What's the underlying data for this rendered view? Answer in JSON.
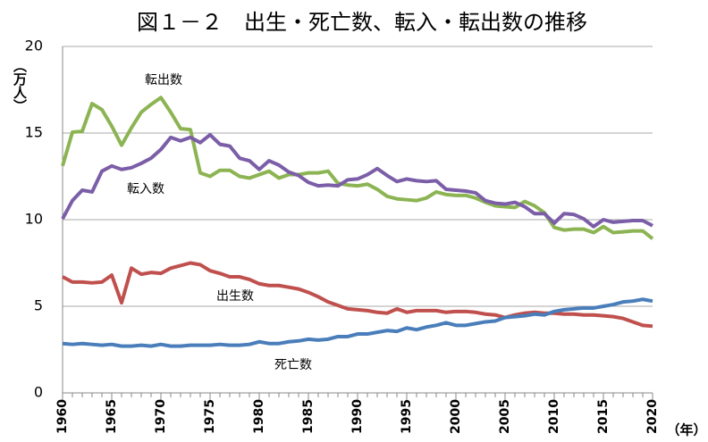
{
  "chart_data": {
    "type": "line",
    "title": "図１－２　出生・死亡数、転入・転出数の推移",
    "y_label": "（万人）",
    "x_label": "（年）",
    "x": [
      1960,
      1961,
      1962,
      1963,
      1964,
      1965,
      1966,
      1967,
      1968,
      1969,
      1970,
      1971,
      1972,
      1973,
      1974,
      1975,
      1976,
      1977,
      1978,
      1979,
      1980,
      1981,
      1982,
      1983,
      1984,
      1985,
      1986,
      1987,
      1988,
      1989,
      1990,
      1991,
      1992,
      1993,
      1994,
      1995,
      1996,
      1997,
      1998,
      1999,
      2000,
      2001,
      2002,
      2003,
      2004,
      2005,
      2006,
      2007,
      2008,
      2009,
      2010,
      2011,
      2012,
      2013,
      2014,
      2015,
      2016,
      2017,
      2018,
      2019,
      2020
    ],
    "xlim": [
      1960,
      2020
    ],
    "xticks": [
      1960,
      1965,
      1970,
      1975,
      1980,
      1985,
      1990,
      1995,
      2000,
      2005,
      2010,
      2015,
      2020
    ],
    "ylim": [
      0,
      20
    ],
    "yticks": [
      0,
      5,
      10,
      15,
      20
    ],
    "grid": true,
    "series": [
      {
        "name": "転出数",
        "color": "#8cb453",
        "values": [
          13.1,
          15.05,
          15.1,
          16.7,
          16.35,
          15.4,
          14.3,
          15.3,
          16.2,
          16.65,
          17.05,
          16.2,
          15.25,
          15.2,
          12.7,
          12.5,
          12.85,
          12.85,
          12.5,
          12.4,
          12.6,
          12.8,
          12.4,
          12.6,
          12.6,
          12.7,
          12.7,
          12.8,
          12.1,
          12.0,
          11.95,
          12.05,
          11.75,
          11.35,
          11.2,
          11.15,
          11.1,
          11.25,
          11.6,
          11.45,
          11.4,
          11.4,
          11.25,
          11.0,
          10.8,
          10.75,
          10.7,
          11.05,
          10.8,
          10.4,
          9.55,
          9.4,
          9.45,
          9.45,
          9.25,
          9.6,
          9.25,
          9.3,
          9.35,
          9.35,
          8.9
        ]
      },
      {
        "name": "転入数",
        "color": "#7b5ea7",
        "values": [
          10.05,
          11.1,
          11.7,
          11.6,
          12.8,
          13.1,
          12.9,
          13.0,
          13.25,
          13.55,
          14.05,
          14.75,
          14.55,
          14.75,
          14.45,
          14.9,
          14.35,
          14.25,
          13.55,
          13.4,
          12.9,
          13.4,
          13.15,
          12.75,
          12.55,
          12.15,
          11.95,
          12.0,
          11.95,
          12.3,
          12.35,
          12.6,
          12.95,
          12.55,
          12.2,
          12.35,
          12.25,
          12.2,
          12.25,
          11.75,
          11.7,
          11.65,
          11.55,
          11.1,
          10.95,
          10.9,
          11.0,
          10.75,
          10.35,
          10.35,
          9.8,
          10.35,
          10.3,
          10.05,
          9.6,
          10.0,
          9.85,
          9.9,
          9.95,
          9.95,
          9.65
        ]
      },
      {
        "name": "出生数",
        "color": "#c0504d",
        "values": [
          6.7,
          6.4,
          6.4,
          6.35,
          6.4,
          6.8,
          5.2,
          7.2,
          6.85,
          6.95,
          6.9,
          7.2,
          7.35,
          7.5,
          7.4,
          7.05,
          6.9,
          6.7,
          6.7,
          6.55,
          6.3,
          6.2,
          6.2,
          6.1,
          6.0,
          5.8,
          5.55,
          5.25,
          5.05,
          4.85,
          4.8,
          4.75,
          4.65,
          4.6,
          4.85,
          4.65,
          4.75,
          4.75,
          4.75,
          4.65,
          4.7,
          4.7,
          4.65,
          4.55,
          4.5,
          4.35,
          4.5,
          4.6,
          4.65,
          4.6,
          4.6,
          4.55,
          4.55,
          4.5,
          4.5,
          4.45,
          4.4,
          4.3,
          4.1,
          3.9,
          3.85
        ]
      },
      {
        "name": "死亡数",
        "color": "#4a7ebb",
        "values": [
          2.85,
          2.8,
          2.85,
          2.8,
          2.75,
          2.8,
          2.7,
          2.7,
          2.75,
          2.7,
          2.8,
          2.7,
          2.7,
          2.75,
          2.75,
          2.75,
          2.8,
          2.75,
          2.75,
          2.8,
          2.95,
          2.85,
          2.85,
          2.95,
          3.0,
          3.1,
          3.05,
          3.1,
          3.25,
          3.25,
          3.4,
          3.4,
          3.5,
          3.6,
          3.55,
          3.75,
          3.65,
          3.8,
          3.9,
          4.05,
          3.9,
          3.9,
          4.0,
          4.1,
          4.15,
          4.35,
          4.4,
          4.45,
          4.55,
          4.5,
          4.7,
          4.8,
          4.85,
          4.9,
          4.9,
          5.0,
          5.1,
          5.25,
          5.3,
          5.4,
          5.3
        ]
      }
    ]
  }
}
